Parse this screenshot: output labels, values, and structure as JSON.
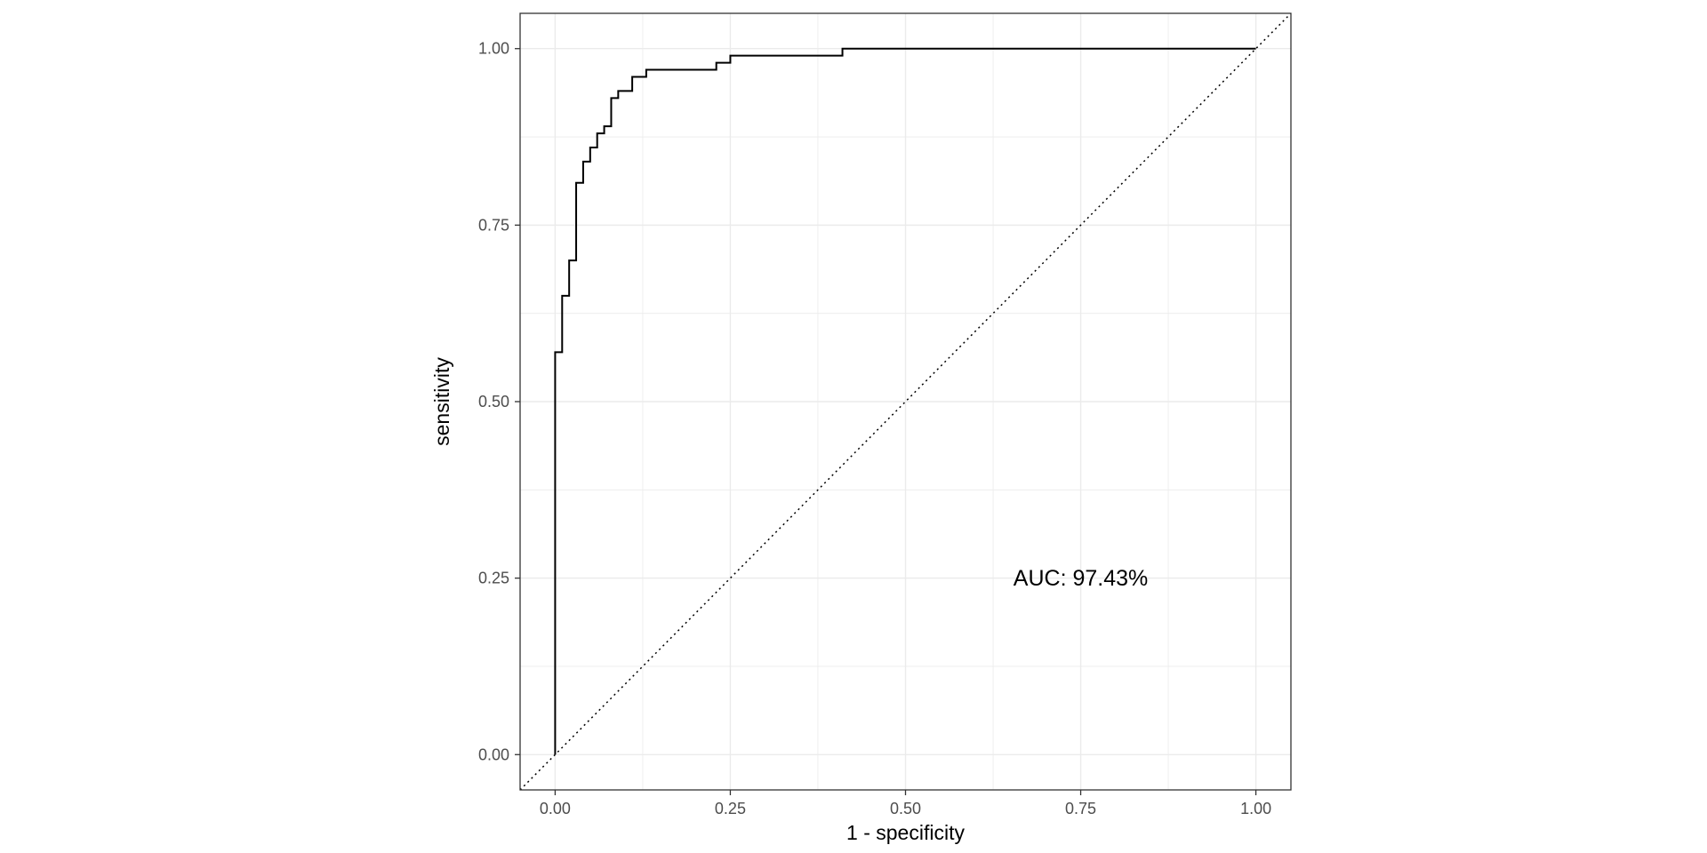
{
  "chart_data": {
    "type": "line",
    "title": "",
    "xlabel": "1 - specificity",
    "ylabel": "sensitivity",
    "xlim": [
      -0.05,
      1.05
    ],
    "ylim": [
      -0.05,
      1.05
    ],
    "x_ticks": [
      0,
      0.25,
      0.5,
      0.75,
      1
    ],
    "x_tick_labels": [
      "0.00",
      "0.25",
      "0.50",
      "0.75",
      "1.00"
    ],
    "y_ticks": [
      0,
      0.25,
      0.5,
      0.75,
      1
    ],
    "y_tick_labels": [
      "0.00",
      "0.25",
      "0.50",
      "0.75",
      "1.00"
    ],
    "grid": true,
    "reference_line": {
      "style": "dotted",
      "from": [
        -0.05,
        -0.05
      ],
      "to": [
        1.05,
        1.05
      ]
    },
    "annotation": {
      "text": "AUC: 97.43%",
      "x": 0.75,
      "y": 0.25
    },
    "series": [
      {
        "style": "step",
        "color": "#000000",
        "points": [
          [
            0.0,
            0.0
          ],
          [
            0.0,
            0.57
          ],
          [
            0.01,
            0.57
          ],
          [
            0.01,
            0.65
          ],
          [
            0.02,
            0.65
          ],
          [
            0.02,
            0.7
          ],
          [
            0.03,
            0.7
          ],
          [
            0.03,
            0.81
          ],
          [
            0.04,
            0.81
          ],
          [
            0.04,
            0.84
          ],
          [
            0.05,
            0.84
          ],
          [
            0.05,
            0.86
          ],
          [
            0.06,
            0.86
          ],
          [
            0.06,
            0.88
          ],
          [
            0.07,
            0.88
          ],
          [
            0.07,
            0.89
          ],
          [
            0.08,
            0.89
          ],
          [
            0.08,
            0.93
          ],
          [
            0.09,
            0.93
          ],
          [
            0.09,
            0.94
          ],
          [
            0.11,
            0.94
          ],
          [
            0.11,
            0.96
          ],
          [
            0.13,
            0.96
          ],
          [
            0.13,
            0.97
          ],
          [
            0.23,
            0.97
          ],
          [
            0.23,
            0.98
          ],
          [
            0.25,
            0.98
          ],
          [
            0.25,
            0.99
          ],
          [
            0.41,
            0.99
          ],
          [
            0.41,
            1.0
          ],
          [
            1.0,
            1.0
          ]
        ]
      }
    ]
  },
  "colors": {
    "grid": "#ebebeb",
    "panel_border": "#333333",
    "tick_label": "#4d4d4d",
    "curve": "#000000"
  }
}
